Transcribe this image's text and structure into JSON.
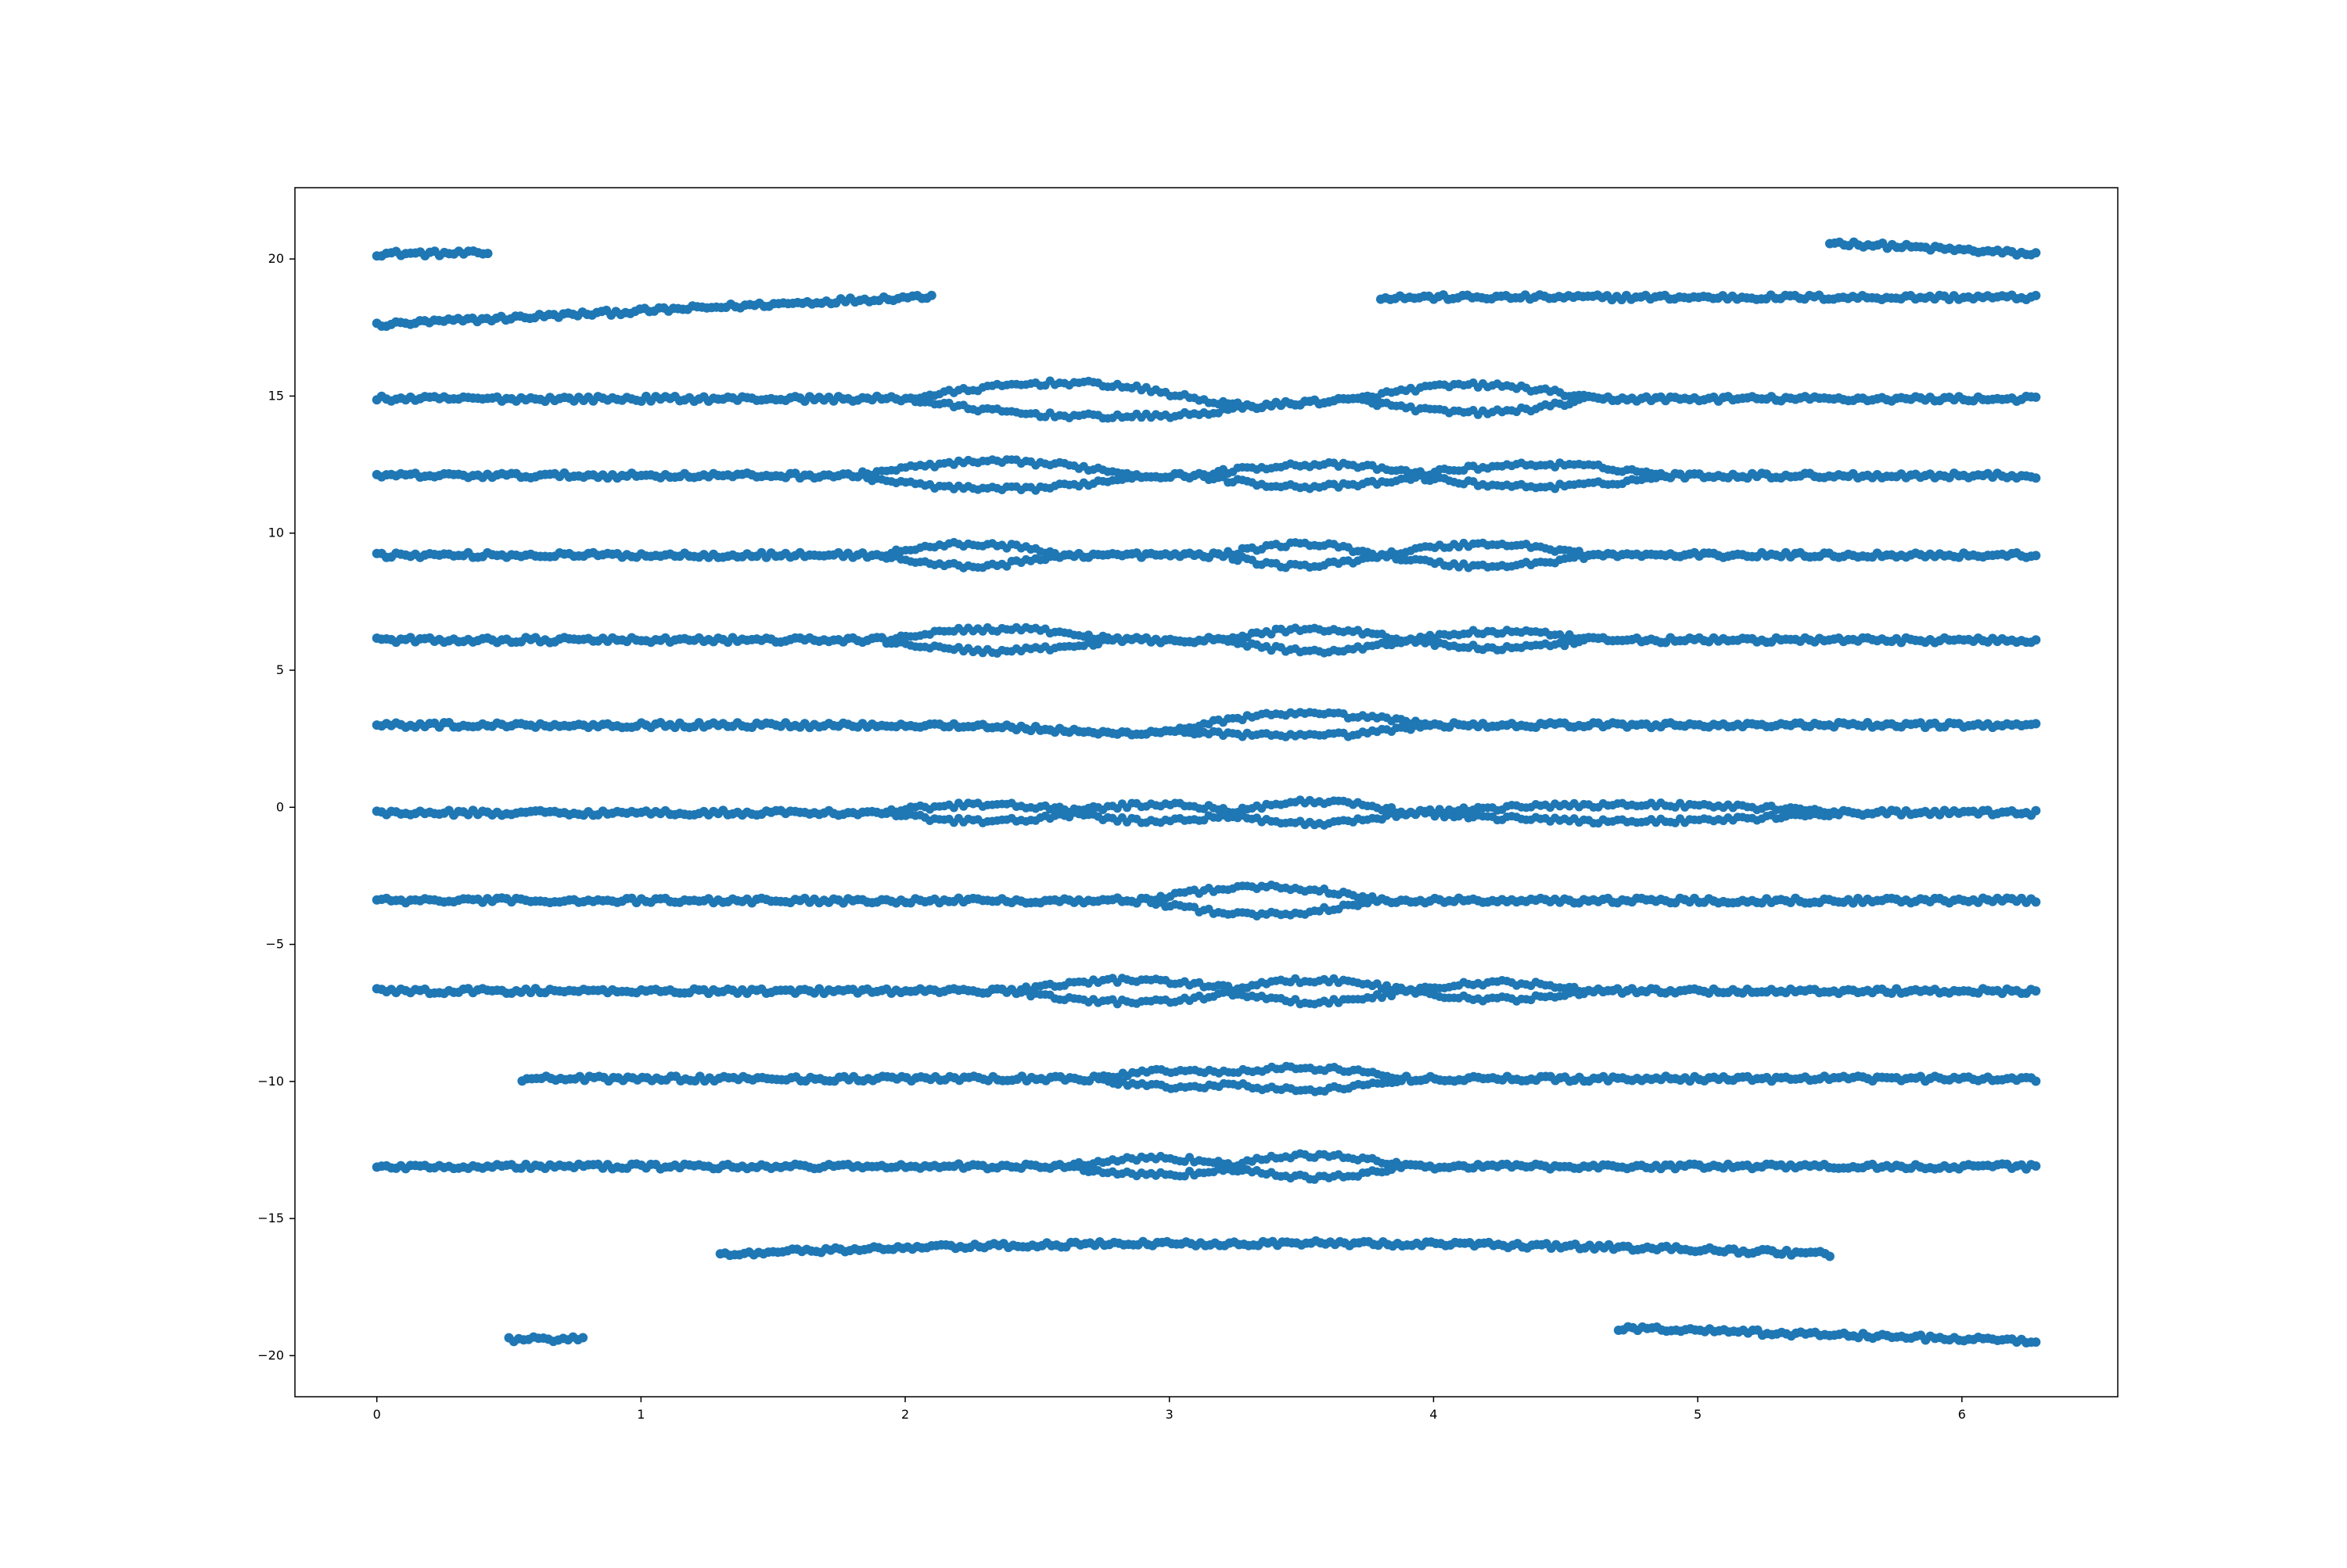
{
  "chart_data": {
    "type": "scatter",
    "title": "",
    "xlabel": "",
    "ylabel": "",
    "xlim": [
      -0.31,
      6.59
    ],
    "ylim": [
      -21.5,
      22.6
    ],
    "xticks": [
      0,
      1,
      2,
      3,
      4,
      5,
      6
    ],
    "yticks": [
      -20,
      -15,
      -10,
      -5,
      0,
      5,
      10,
      15,
      20
    ],
    "grid": false,
    "legend": "none",
    "marker_color": "#1f77b4",
    "bands": [
      {
        "y": 20.2,
        "segments": [
          [
            0.0,
            0.42
          ]
        ],
        "slope": 0.0,
        "note": "top-left"
      },
      {
        "y": 20.6,
        "segments": [
          [
            5.5,
            6.28
          ]
        ],
        "slope": -0.55,
        "note": "top-right"
      },
      {
        "y": 17.6,
        "segments": [
          [
            0.0,
            2.1
          ]
        ],
        "slope": 0.5,
        "note": "rising-left"
      },
      {
        "y": 18.6,
        "segments": [
          [
            3.8,
            6.28
          ]
        ],
        "slope": -0.35,
        "note": "falling-right",
        "peak": [
          4.4,
          18.6
        ]
      },
      {
        "y": 14.9,
        "segments": [
          [
            0.0,
            6.28
          ]
        ],
        "braid": [
          [
            2.0,
            3.3,
            0.6
          ],
          [
            3.7,
            4.6,
            0.5
          ]
        ],
        "dip": [
          3.2,
          -0.3
        ]
      },
      {
        "y": 12.1,
        "segments": [
          [
            0.0,
            6.28
          ]
        ],
        "braid": [
          [
            1.8,
            2.9,
            0.5
          ],
          [
            3.1,
            4.0,
            0.4
          ],
          [
            3.9,
            4.9,
            0.4
          ]
        ]
      },
      {
        "y": 9.2,
        "segments": [
          [
            0.0,
            6.28
          ]
        ],
        "braid": [
          [
            1.9,
            2.6,
            0.4
          ],
          [
            3.2,
            3.8,
            0.4
          ],
          [
            3.8,
            4.6,
            0.4
          ]
        ]
      },
      {
        "y": 6.1,
        "segments": [
          [
            0.0,
            6.28
          ]
        ],
        "braid": [
          [
            1.9,
            2.8,
            0.4
          ],
          [
            3.2,
            3.9,
            0.4
          ],
          [
            3.9,
            4.6,
            0.3
          ]
        ]
      },
      {
        "y": 3.0,
        "segments": [
          [
            0.0,
            6.28
          ]
        ],
        "braid": [
          [
            3.0,
            4.0,
            0.4
          ]
        ],
        "dip": [
          2.8,
          -0.3
        ]
      },
      {
        "y": -0.2,
        "segments": [
          [
            0.0,
            6.28
          ]
        ],
        "braid": [
          [
            1.9,
            2.7,
            0.3
          ],
          [
            2.6,
            3.3,
            0.3
          ],
          [
            3.2,
            3.9,
            0.4
          ],
          [
            3.9,
            5.6,
            0.3
          ]
        ]
      },
      {
        "y": -3.4,
        "segments": [
          [
            0.0,
            6.28
          ]
        ],
        "braid": [
          [
            2.9,
            3.8,
            0.5
          ]
        ]
      },
      {
        "y": -6.7,
        "segments": [
          [
            0.0,
            6.28
          ]
        ],
        "braid": [
          [
            2.4,
            3.3,
            0.4
          ],
          [
            3.2,
            3.9,
            0.4
          ],
          [
            3.9,
            4.6,
            0.3
          ]
        ]
      },
      {
        "y": -9.9,
        "segments": [
          [
            0.55,
            6.28
          ]
        ],
        "braid": [
          [
            2.7,
            3.4,
            0.3
          ],
          [
            3.1,
            3.9,
            0.4
          ]
        ]
      },
      {
        "y": -13.1,
        "segments": [
          [
            0.0,
            6.28
          ]
        ],
        "braid": [
          [
            2.6,
            3.3,
            0.3
          ],
          [
            3.2,
            3.9,
            0.4
          ]
        ]
      },
      {
        "y": -16.3,
        "segments": [
          [
            1.3,
            5.5
          ]
        ],
        "peak": [
          3.4,
          -15.9
        ]
      },
      {
        "y": -19.4,
        "segments": [
          [
            0.5,
            0.78
          ]
        ],
        "slope": 0.0,
        "note": "bottom-left"
      },
      {
        "y": -19.0,
        "segments": [
          [
            4.7,
            6.28
          ]
        ],
        "slope": -0.3,
        "note": "bottom-right"
      }
    ]
  }
}
